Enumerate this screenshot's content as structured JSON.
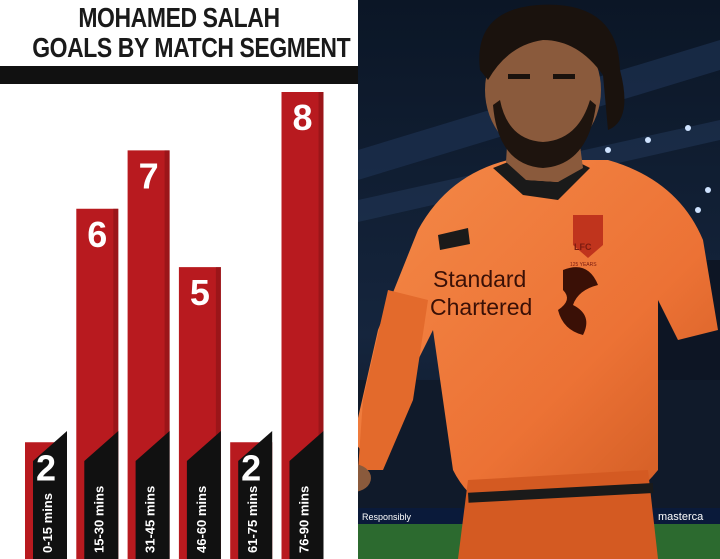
{
  "title": {
    "line1": "MOHAMED SALAH",
    "line2": "GOALS BY MATCH SEGMENT"
  },
  "chart_data": {
    "type": "bar",
    "title": "MOHAMED SALAH GOALS BY MATCH SEGMENT",
    "categories": [
      "0-15 mins",
      "15-30 mins",
      "31-45 mins",
      "46-60 mins",
      "61-75 mins",
      "76-90 mins"
    ],
    "values": [
      2,
      6,
      7,
      5,
      2,
      8
    ],
    "ylim": [
      0,
      8
    ],
    "grid": false,
    "colors": {
      "bar": "#b81a1f",
      "bar_dark": "#7d1013",
      "label_tab": "#111111"
    }
  },
  "photo": {
    "shirt_sponsor_line1": "Standard",
    "shirt_sponsor_line2": "Chartered",
    "crest_text": "LFC",
    "crest_sub": "125 YEARS",
    "board_left": "Responsibly",
    "board_right": "masterca",
    "colors": {
      "shirt": "#f07a3a",
      "shirt_dark": "#c95520",
      "skin": "#8a5a3c",
      "hair": "#1a120d",
      "sky": "#0e1a2c"
    }
  }
}
